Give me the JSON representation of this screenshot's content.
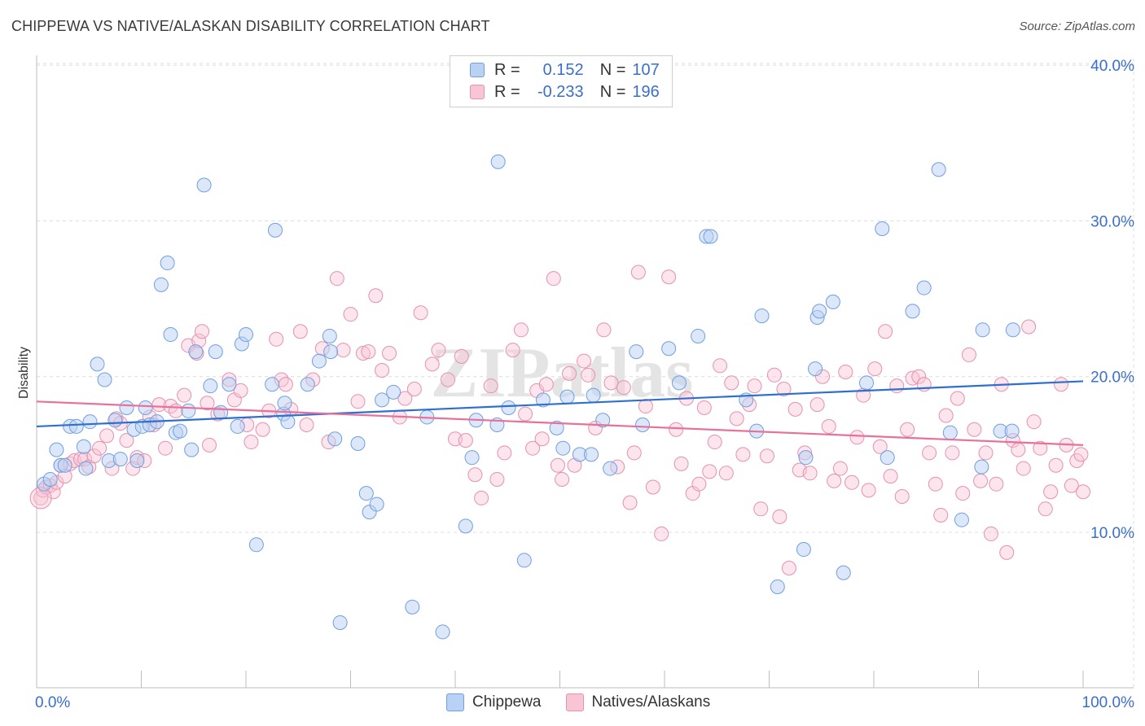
{
  "title": "CHIPPEWA VS NATIVE/ALASKAN DISABILITY CORRELATION CHART",
  "source": "Source: ZipAtlas.com",
  "watermark": "ZIPatlas",
  "legend": {
    "r_label": "R =",
    "n_label": "N =",
    "chippewa": {
      "r": "0.152",
      "n": "107"
    },
    "natives": {
      "r": "-0.233",
      "n": "196"
    }
  },
  "bottom_legend": [
    "Chippewa",
    "Natives/Alaskans"
  ],
  "colors": {
    "blue_fill": "#b9d2f3",
    "blue_stroke": "#6f9fe0",
    "blue_line": "#2f6fd0",
    "pink_fill": "#f8c5d5",
    "pink_stroke": "#e691ad",
    "pink_line": "#e8709a",
    "tick_label": "#3a6fcb"
  },
  "chart_data": {
    "type": "scatter",
    "title": "CHIPPEWA VS NATIVE/ALASKAN DISABILITY CORRELATION CHART",
    "xlabel": "",
    "ylabel": "Disability",
    "xlim": [
      0,
      100
    ],
    "ylim": [
      0,
      42
    ],
    "x_tick_labels": [
      "0.0%",
      "100.0%"
    ],
    "y_ticks": [
      10,
      20,
      30,
      40
    ],
    "y_tick_labels": [
      "10.0%",
      "20.0%",
      "30.0%",
      "40.0%"
    ],
    "grid": true,
    "legend_position": "top-center",
    "series": [
      {
        "name": "Chippewa",
        "r": 0.152,
        "n": 107,
        "trend": [
          [
            0,
            16.8
          ],
          [
            100,
            19.7
          ]
        ],
        "points": [
          [
            0.7,
            13.1
          ],
          [
            1.3,
            13.4
          ],
          [
            1.9,
            15.3
          ],
          [
            2.3,
            14.3
          ],
          [
            2.7,
            14.3
          ],
          [
            3.2,
            16.8
          ],
          [
            3.8,
            16.8
          ],
          [
            4.5,
            15.5
          ],
          [
            4.7,
            14.1
          ],
          [
            5.1,
            17.1
          ],
          [
            5.8,
            20.8
          ],
          [
            6.5,
            19.8
          ],
          [
            6.9,
            14.6
          ],
          [
            7.5,
            17.2
          ],
          [
            8.0,
            14.7
          ],
          [
            8.6,
            18.0
          ],
          [
            9.3,
            16.6
          ],
          [
            9.6,
            14.6
          ],
          [
            10.1,
            16.8
          ],
          [
            10.4,
            18.0
          ],
          [
            10.8,
            16.9
          ],
          [
            11.5,
            17.1
          ],
          [
            11.9,
            25.9
          ],
          [
            12.5,
            27.3
          ],
          [
            12.8,
            22.7
          ],
          [
            13.3,
            16.4
          ],
          [
            13.7,
            16.5
          ],
          [
            14.5,
            17.8
          ],
          [
            14.8,
            15.3
          ],
          [
            15.2,
            21.6
          ],
          [
            16.0,
            32.3
          ],
          [
            16.6,
            19.4
          ],
          [
            17.1,
            21.6
          ],
          [
            17.6,
            17.7
          ],
          [
            18.4,
            19.5
          ],
          [
            19.2,
            16.8
          ],
          [
            19.6,
            22.1
          ],
          [
            20.0,
            22.7
          ],
          [
            21.0,
            9.2
          ],
          [
            22.5,
            19.5
          ],
          [
            22.8,
            29.4
          ],
          [
            23.6,
            17.6
          ],
          [
            23.7,
            18.3
          ],
          [
            24.0,
            17.1
          ],
          [
            25.9,
            19.5
          ],
          [
            27.0,
            21.0
          ],
          [
            28.0,
            22.6
          ],
          [
            28.1,
            21.6
          ],
          [
            28.5,
            16.0
          ],
          [
            29.0,
            4.2
          ],
          [
            30.7,
            15.7
          ],
          [
            31.5,
            12.5
          ],
          [
            31.8,
            11.3
          ],
          [
            32.5,
            11.8
          ],
          [
            33.0,
            18.5
          ],
          [
            34.1,
            19.0
          ],
          [
            35.9,
            5.2
          ],
          [
            37.3,
            17.4
          ],
          [
            38.8,
            3.6
          ],
          [
            41.0,
            10.4
          ],
          [
            42.0,
            17.2
          ],
          [
            41.6,
            14.8
          ],
          [
            44.0,
            16.9
          ],
          [
            44.1,
            33.8
          ],
          [
            45.1,
            18.0
          ],
          [
            46.6,
            8.2
          ],
          [
            48.4,
            18.5
          ],
          [
            49.7,
            16.7
          ],
          [
            50.3,
            15.4
          ],
          [
            50.7,
            18.7
          ],
          [
            51.9,
            15.0
          ],
          [
            53.0,
            15.0
          ],
          [
            53.2,
            18.8
          ],
          [
            54.1,
            17.2
          ],
          [
            54.8,
            14.1
          ],
          [
            57.3,
            21.6
          ],
          [
            57.9,
            16.9
          ],
          [
            60.4,
            21.8
          ],
          [
            61.4,
            19.6
          ],
          [
            63.2,
            22.6
          ],
          [
            64.0,
            29.0
          ],
          [
            64.4,
            29.0
          ],
          [
            67.8,
            18.5
          ],
          [
            68.8,
            16.5
          ],
          [
            69.3,
            23.9
          ],
          [
            70.8,
            6.5
          ],
          [
            73.3,
            8.9
          ],
          [
            73.5,
            14.8
          ],
          [
            74.4,
            20.5
          ],
          [
            74.6,
            23.8
          ],
          [
            74.8,
            24.2
          ],
          [
            76.1,
            24.8
          ],
          [
            77.1,
            7.4
          ],
          [
            79.3,
            19.6
          ],
          [
            80.8,
            29.5
          ],
          [
            81.3,
            14.8
          ],
          [
            83.7,
            24.2
          ],
          [
            84.8,
            25.7
          ],
          [
            86.2,
            33.3
          ],
          [
            87.3,
            16.4
          ],
          [
            88.4,
            10.8
          ],
          [
            90.3,
            14.2
          ],
          [
            90.4,
            23.0
          ],
          [
            92.1,
            16.5
          ],
          [
            93.2,
            16.5
          ],
          [
            93.3,
            23.0
          ]
        ]
      },
      {
        "name": "Natives/Alaskans",
        "r": -0.233,
        "n": 196,
        "trend": [
          [
            0,
            18.4
          ],
          [
            100,
            15.6
          ]
        ],
        "points": [
          [
            0.4,
            12.2
          ],
          [
            0.6,
            12.7
          ],
          [
            0.9,
            12.9
          ],
          [
            1.3,
            13.0
          ],
          [
            1.6,
            12.6
          ],
          [
            1.9,
            13.2
          ],
          [
            2.3,
            14.3
          ],
          [
            2.7,
            13.6
          ],
          [
            3.2,
            14.4
          ],
          [
            3.6,
            14.6
          ],
          [
            4.2,
            14.7
          ],
          [
            4.6,
            14.7
          ],
          [
            5.0,
            14.2
          ],
          [
            5.5,
            14.9
          ],
          [
            6.0,
            15.4
          ],
          [
            6.7,
            16.2
          ],
          [
            7.2,
            14.1
          ],
          [
            7.6,
            17.3
          ],
          [
            8.0,
            17.0
          ],
          [
            8.6,
            15.9
          ],
          [
            9.2,
            14.1
          ],
          [
            9.6,
            14.8
          ],
          [
            10.3,
            14.6
          ],
          [
            10.8,
            17.4
          ],
          [
            11.2,
            16.9
          ],
          [
            11.7,
            18.2
          ],
          [
            12.3,
            15.4
          ],
          [
            12.8,
            18.1
          ],
          [
            13.3,
            17.8
          ],
          [
            14.1,
            18.8
          ],
          [
            14.5,
            22.0
          ],
          [
            15.3,
            21.5
          ],
          [
            15.5,
            22.3
          ],
          [
            15.8,
            22.9
          ],
          [
            16.3,
            18.3
          ],
          [
            16.5,
            15.6
          ],
          [
            17.3,
            17.6
          ],
          [
            18.4,
            19.8
          ],
          [
            18.9,
            18.5
          ],
          [
            19.5,
            19.1
          ],
          [
            20.1,
            16.9
          ],
          [
            20.5,
            15.8
          ],
          [
            21.6,
            16.6
          ],
          [
            22.2,
            17.8
          ],
          [
            22.9,
            22.4
          ],
          [
            23.4,
            19.8
          ],
          [
            23.8,
            19.5
          ],
          [
            24.3,
            17.9
          ],
          [
            25.2,
            22.9
          ],
          [
            25.8,
            16.9
          ],
          [
            26.4,
            19.8
          ],
          [
            27.3,
            21.8
          ],
          [
            27.9,
            15.8
          ],
          [
            28.7,
            26.3
          ],
          [
            29.3,
            21.7
          ],
          [
            30.0,
            24.0
          ],
          [
            30.7,
            18.4
          ],
          [
            31.2,
            21.5
          ],
          [
            31.7,
            21.6
          ],
          [
            32.4,
            25.2
          ],
          [
            33.0,
            20.4
          ],
          [
            33.7,
            21.5
          ],
          [
            34.7,
            17.4
          ],
          [
            35.2,
            18.6
          ],
          [
            36.1,
            19.2
          ],
          [
            36.7,
            24.1
          ],
          [
            37.8,
            20.8
          ],
          [
            38.4,
            21.7
          ],
          [
            39.3,
            19.8
          ],
          [
            40.0,
            16.0
          ],
          [
            40.6,
            21.3
          ],
          [
            41.0,
            15.9
          ],
          [
            41.9,
            13.7
          ],
          [
            42.5,
            12.2
          ],
          [
            43.4,
            19.4
          ],
          [
            44.0,
            13.4
          ],
          [
            44.7,
            15.1
          ],
          [
            45.5,
            21.7
          ],
          [
            46.3,
            23.0
          ],
          [
            46.7,
            17.6
          ],
          [
            47.4,
            15.4
          ],
          [
            47.8,
            19.1
          ],
          [
            48.3,
            16.0
          ],
          [
            48.7,
            19.5
          ],
          [
            49.4,
            26.3
          ],
          [
            49.8,
            14.3
          ],
          [
            50.2,
            13.4
          ],
          [
            50.9,
            20.2
          ],
          [
            51.4,
            14.3
          ],
          [
            52.3,
            21.0
          ],
          [
            52.7,
            20.1
          ],
          [
            53.4,
            16.7
          ],
          [
            54.2,
            23.0
          ],
          [
            54.9,
            19.6
          ],
          [
            55.5,
            14.2
          ],
          [
            56.1,
            19.3
          ],
          [
            56.7,
            11.9
          ],
          [
            57.1,
            15.1
          ],
          [
            57.5,
            26.7
          ],
          [
            58.2,
            18.1
          ],
          [
            58.9,
            12.9
          ],
          [
            59.7,
            9.9
          ],
          [
            60.4,
            26.4
          ],
          [
            61.1,
            16.6
          ],
          [
            61.6,
            14.4
          ],
          [
            62.1,
            18.6
          ],
          [
            62.7,
            12.5
          ],
          [
            63.3,
            13.1
          ],
          [
            63.8,
            18.0
          ],
          [
            64.3,
            13.9
          ],
          [
            64.8,
            15.8
          ],
          [
            65.3,
            20.7
          ],
          [
            65.9,
            13.8
          ],
          [
            66.4,
            19.6
          ],
          [
            66.9,
            17.3
          ],
          [
            67.5,
            15.0
          ],
          [
            68.1,
            18.2
          ],
          [
            68.6,
            19.4
          ],
          [
            69.2,
            11.5
          ],
          [
            69.8,
            14.9
          ],
          [
            70.5,
            20.1
          ],
          [
            71.0,
            11.0
          ],
          [
            71.4,
            19.2
          ],
          [
            71.9,
            7.7
          ],
          [
            72.5,
            17.9
          ],
          [
            72.9,
            14.0
          ],
          [
            73.4,
            15.1
          ],
          [
            73.9,
            13.8
          ],
          [
            74.6,
            18.2
          ],
          [
            75.1,
            20.0
          ],
          [
            75.7,
            16.8
          ],
          [
            76.2,
            13.3
          ],
          [
            76.8,
            14.1
          ],
          [
            77.3,
            20.3
          ],
          [
            77.9,
            13.2
          ],
          [
            78.4,
            16.1
          ],
          [
            79.0,
            18.8
          ],
          [
            79.5,
            12.7
          ],
          [
            80.1,
            20.5
          ],
          [
            80.6,
            15.5
          ],
          [
            81.1,
            22.9
          ],
          [
            81.6,
            13.6
          ],
          [
            82.2,
            19.4
          ],
          [
            82.7,
            12.3
          ],
          [
            83.2,
            16.6
          ],
          [
            83.7,
            19.9
          ],
          [
            84.3,
            20.0
          ],
          [
            84.8,
            19.5
          ],
          [
            85.3,
            15.1
          ],
          [
            85.9,
            13.1
          ],
          [
            86.4,
            11.1
          ],
          [
            86.9,
            17.5
          ],
          [
            87.5,
            15.1
          ],
          [
            88.0,
            18.6
          ],
          [
            88.5,
            12.5
          ],
          [
            89.1,
            21.4
          ],
          [
            89.6,
            16.6
          ],
          [
            90.2,
            13.3
          ],
          [
            90.7,
            15.1
          ],
          [
            91.2,
            9.9
          ],
          [
            91.7,
            13.1
          ],
          [
            92.2,
            19.5
          ],
          [
            92.7,
            8.7
          ],
          [
            93.3,
            15.9
          ],
          [
            93.8,
            15.3
          ],
          [
            94.3,
            14.1
          ],
          [
            94.8,
            23.2
          ],
          [
            95.3,
            17.1
          ],
          [
            95.9,
            15.4
          ],
          [
            96.4,
            11.5
          ],
          [
            96.9,
            12.6
          ],
          [
            97.4,
            14.3
          ],
          [
            97.9,
            19.5
          ],
          [
            98.4,
            15.6
          ],
          [
            98.9,
            13.0
          ],
          [
            99.4,
            14.6
          ],
          [
            99.8,
            15.0
          ],
          [
            100.0,
            12.6
          ]
        ]
      }
    ]
  }
}
